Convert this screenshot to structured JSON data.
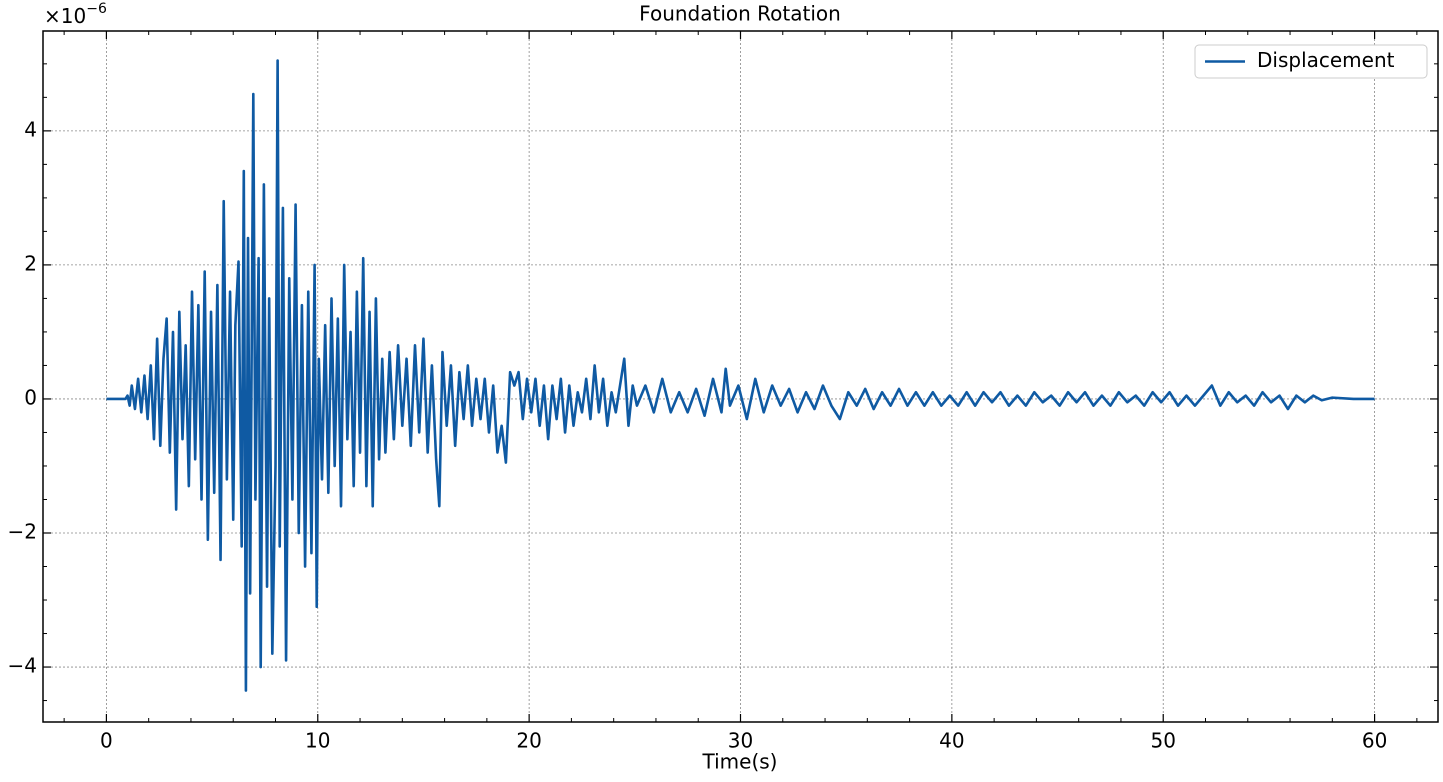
{
  "chart_data": {
    "type": "line",
    "title": "Foundation Rotation",
    "xlabel": "Time(s)",
    "y_scale_label": {
      "base": "×10",
      "exponent": "−6"
    },
    "xlim": [
      -3,
      63
    ],
    "ylim": [
      -4.82,
      5.49
    ],
    "xticks": [
      0,
      10,
      20,
      30,
      40,
      50,
      60
    ],
    "yticks": [
      {
        "value": -4,
        "label": "−4"
      },
      {
        "value": -2,
        "label": "−2"
      },
      0,
      2,
      4
    ],
    "xminorticks": [
      -2,
      2,
      4,
      6,
      8,
      12,
      14,
      16,
      18,
      22,
      24,
      26,
      28,
      32,
      34,
      36,
      38,
      42,
      44,
      46,
      48,
      52,
      54,
      56,
      58,
      62
    ],
    "yminorticks": [
      -4.5,
      -3.5,
      -3,
      -2.5,
      -1.5,
      -1,
      -0.5,
      0.5,
      1,
      1.5,
      2.5,
      3,
      3.5,
      4.5,
      5
    ],
    "grid": true,
    "legend": "upper right",
    "x": [
      0,
      0.9,
      1.0,
      1.1,
      1.2,
      1.35,
      1.5,
      1.65,
      1.8,
      1.95,
      2.1,
      2.25,
      2.4,
      2.55,
      2.7,
      2.85,
      3.0,
      3.15,
      3.3,
      3.45,
      3.6,
      3.75,
      3.9,
      4.05,
      4.2,
      4.35,
      4.5,
      4.65,
      4.8,
      4.95,
      5.1,
      5.25,
      5.4,
      5.55,
      5.7,
      5.85,
      6.0,
      6.1,
      6.25,
      6.4,
      6.5,
      6.6,
      6.7,
      6.8,
      6.95,
      7.05,
      7.2,
      7.3,
      7.45,
      7.6,
      7.7,
      7.85,
      8.0,
      8.1,
      8.2,
      8.35,
      8.5,
      8.65,
      8.8,
      8.95,
      9.1,
      9.25,
      9.4,
      9.55,
      9.7,
      9.85,
      9.95,
      10.05,
      10.2,
      10.35,
      10.5,
      10.65,
      10.8,
      10.95,
      11.1,
      11.25,
      11.4,
      11.55,
      11.7,
      11.85,
      12.0,
      12.15,
      12.3,
      12.45,
      12.6,
      12.75,
      12.9,
      13.05,
      13.2,
      13.4,
      13.6,
      13.8,
      14.0,
      14.2,
      14.4,
      14.6,
      14.8,
      15.0,
      15.2,
      15.4,
      15.6,
      15.75,
      15.9,
      16.1,
      16.3,
      16.5,
      16.7,
      16.9,
      17.1,
      17.3,
      17.5,
      17.7,
      17.9,
      18.1,
      18.3,
      18.5,
      18.7,
      18.9,
      19.1,
      19.3,
      19.5,
      19.7,
      19.9,
      20.1,
      20.3,
      20.5,
      20.7,
      20.9,
      21.1,
      21.3,
      21.5,
      21.7,
      21.9,
      22.1,
      22.3,
      22.5,
      22.7,
      22.9,
      23.1,
      23.3,
      23.5,
      23.7,
      23.9,
      24.1,
      24.3,
      24.5,
      24.7,
      24.9,
      25.1,
      25.5,
      25.9,
      26.3,
      26.7,
      27.1,
      27.5,
      27.9,
      28.3,
      28.7,
      29.1,
      29.3,
      29.5,
      29.9,
      30.3,
      30.7,
      31.1,
      31.5,
      31.9,
      32.3,
      32.7,
      33.1,
      33.5,
      33.9,
      34.3,
      34.7,
      35.1,
      35.5,
      35.9,
      36.3,
      36.7,
      37.1,
      37.5,
      37.9,
      38.3,
      38.7,
      39.1,
      39.5,
      39.9,
      40.3,
      40.7,
      41.1,
      41.5,
      41.9,
      42.3,
      42.7,
      43.1,
      43.5,
      43.9,
      44.3,
      44.7,
      45.1,
      45.5,
      45.9,
      46.3,
      46.7,
      47.1,
      47.5,
      47.9,
      48.3,
      48.7,
      49.1,
      49.5,
      49.9,
      50.3,
      50.7,
      51.1,
      51.5,
      51.9,
      52.3,
      52.7,
      53.1,
      53.5,
      53.9,
      54.3,
      54.7,
      55.1,
      55.5,
      55.9,
      56.3,
      56.7,
      57.1,
      57.5,
      58,
      59,
      60
    ],
    "series": [
      {
        "name": "Displacement",
        "color": "#0f5aa3",
        "values": [
          0,
          0,
          0.05,
          -0.1,
          0.2,
          -0.15,
          0.3,
          -0.2,
          0.35,
          -0.3,
          0.5,
          -0.6,
          0.9,
          -0.7,
          0.6,
          1.2,
          -0.8,
          1.0,
          -1.65,
          1.3,
          -0.6,
          0.8,
          -1.3,
          1.6,
          -0.9,
          1.4,
          -1.5,
          1.9,
          -2.1,
          1.3,
          -1.4,
          1.7,
          -2.4,
          2.95,
          -1.2,
          1.6,
          -1.8,
          1.1,
          2.05,
          -2.2,
          3.4,
          -4.35,
          2.4,
          -2.9,
          4.55,
          -1.5,
          2.1,
          -4.0,
          3.2,
          -2.8,
          1.5,
          -3.8,
          -1.0,
          5.05,
          -2.2,
          2.85,
          -3.9,
          1.8,
          -1.5,
          2.9,
          -2.0,
          1.4,
          -2.5,
          1.6,
          -2.3,
          2.0,
          -3.1,
          0.6,
          -1.2,
          1.1,
          -1.4,
          1.5,
          -1.0,
          1.2,
          -1.6,
          2.0,
          -0.6,
          1.0,
          -1.3,
          1.6,
          -0.8,
          2.1,
          -1.3,
          1.3,
          -1.6,
          1.5,
          -0.9,
          0.6,
          -0.8,
          0.7,
          -0.6,
          0.8,
          -0.4,
          0.6,
          -0.7,
          0.8,
          -0.5,
          0.9,
          -0.8,
          0.5,
          -0.9,
          -1.6,
          0.7,
          -0.4,
          0.5,
          -0.7,
          0.4,
          -0.3,
          0.5,
          -0.4,
          0.3,
          -0.3,
          0.3,
          -0.5,
          0.2,
          -0.8,
          -0.4,
          -0.95,
          0.4,
          0.2,
          0.4,
          -0.3,
          0.3,
          -0.2,
          0.3,
          -0.4,
          0.2,
          -0.6,
          0.2,
          -0.3,
          0.3,
          -0.5,
          0.2,
          -0.4,
          0.1,
          -0.2,
          0.3,
          -0.3,
          0.5,
          -0.2,
          0.3,
          -0.4,
          0.1,
          -0.2,
          0.2,
          0.6,
          -0.4,
          0.2,
          -0.1,
          0.2,
          -0.2,
          0.3,
          -0.2,
          0.1,
          -0.2,
          0.15,
          -0.25,
          0.3,
          -0.2,
          0.45,
          -0.1,
          0.2,
          -0.3,
          0.3,
          -0.2,
          0.2,
          -0.1,
          0.15,
          -0.2,
          0.1,
          -0.15,
          0.2,
          -0.1,
          -0.3,
          0.1,
          -0.1,
          0.15,
          -0.15,
          0.1,
          -0.1,
          0.15,
          -0.1,
          0.1,
          -0.1,
          0.1,
          -0.1,
          0.05,
          -0.1,
          0.1,
          -0.1,
          0.1,
          -0.05,
          0.1,
          -0.1,
          0.05,
          -0.1,
          0.1,
          -0.05,
          0.05,
          -0.1,
          0.1,
          -0.05,
          0.1,
          -0.1,
          0.05,
          -0.1,
          0.1,
          -0.05,
          0.05,
          -0.1,
          0.1,
          -0.05,
          0.1,
          -0.1,
          0.05,
          -0.1,
          0.05,
          0.2,
          -0.1,
          0.1,
          -0.05,
          0.05,
          -0.1,
          0.1,
          -0.05,
          0.05,
          -0.15,
          0.05,
          -0.05,
          0.05,
          -0.02,
          0.02,
          0,
          0
        ]
      }
    ]
  }
}
